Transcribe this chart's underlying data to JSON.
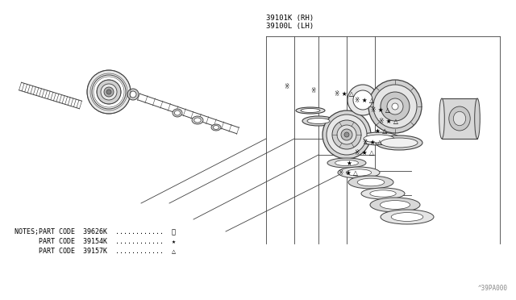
{
  "bg_color": "#ffffff",
  "line_color": "#404040",
  "title_text1": "39101K (RH)",
  "title_text2": "39100L (LH)",
  "note1": "NOTES;PART CODE  39626K  ............  ※",
  "note2": "           PART CODE  39154K  ............  ★",
  "note3": "           PART CODE  39157K  ............  △",
  "watermark": "^39PA000",
  "figure_width": 6.4,
  "figure_height": 3.72
}
